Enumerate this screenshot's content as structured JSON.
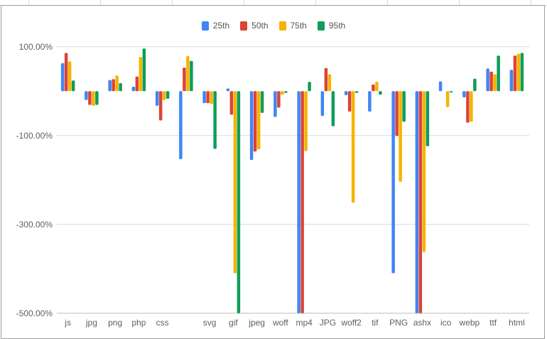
{
  "chart_data": {
    "type": "bar",
    "title": "",
    "xlabel": "",
    "ylabel": "",
    "ylim": [
      -500,
      125
    ],
    "yticks": [
      100,
      -100,
      -300,
      -500
    ],
    "ytick_labels": [
      "100.00%",
      "-100.00%",
      "-300.00%",
      "-500.00%"
    ],
    "grid": true,
    "legend_position": "top",
    "categories": [
      "js",
      "jpg",
      "png",
      "php",
      "css",
      "",
      "svg",
      "gif",
      "jpeg",
      "woff",
      "mp4",
      "JPG",
      "woff2",
      "tif",
      "PNG",
      "ashx",
      "ico",
      "webp",
      "ttf",
      "html"
    ],
    "series": [
      {
        "name": "25th",
        "color": "#4285f4",
        "values": [
          63,
          -20,
          25,
          10,
          -33,
          -153,
          -27,
          6,
          -155,
          -58,
          -500,
          -56,
          -9,
          -46,
          -410,
          -500,
          22,
          -14,
          51,
          48
        ]
      },
      {
        "name": "50th",
        "color": "#db4437",
        "values": [
          86,
          -31,
          27,
          33,
          -66,
          53,
          -27,
          -53,
          -136,
          -37,
          -500,
          52,
          -46,
          15,
          -101,
          -500,
          0,
          -71,
          44,
          80
        ]
      },
      {
        "name": "75th",
        "color": "#f4b400",
        "values": [
          67,
          -33,
          35,
          77,
          -20,
          79,
          -29,
          -410,
          -131,
          -8,
          -135,
          38,
          -251,
          21,
          -204,
          -362,
          -36,
          -69,
          38,
          84
        ]
      },
      {
        "name": "95th",
        "color": "#0f9d58",
        "values": [
          24,
          -31,
          18,
          96,
          -17,
          68,
          -130,
          -500,
          -49,
          -4,
          21,
          -79,
          -4,
          -8,
          -69,
          -124,
          -3,
          28,
          80,
          86
        ]
      }
    ]
  },
  "legend": {
    "items": [
      {
        "label": "25th",
        "color": "#4285f4"
      },
      {
        "label": "50th",
        "color": "#db4437"
      },
      {
        "label": "75th",
        "color": "#f4b400"
      },
      {
        "label": "95th",
        "color": "#0f9d58"
      }
    ]
  }
}
